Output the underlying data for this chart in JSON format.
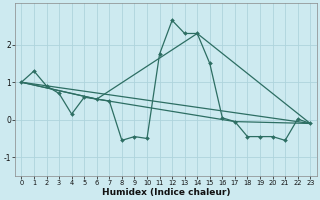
{
  "xlabel": "Humidex (Indice chaleur)",
  "bg_color": "#cdeaf0",
  "grid_color": "#b0d8e0",
  "line_color": "#2d6e63",
  "marker": "D",
  "markersize": 2.0,
  "linewidth": 0.9,
  "xlim": [
    -0.5,
    23.5
  ],
  "ylim": [
    -1.5,
    3.1
  ],
  "yticks": [
    -1,
    0,
    1,
    2
  ],
  "xticks": [
    0,
    1,
    2,
    3,
    4,
    5,
    6,
    7,
    8,
    9,
    10,
    11,
    12,
    13,
    14,
    15,
    16,
    17,
    18,
    19,
    20,
    21,
    22,
    23
  ],
  "lines": [
    {
      "x": [
        0,
        1,
        2,
        3,
        4,
        5,
        6,
        7,
        8,
        9,
        10,
        11,
        12,
        13,
        14,
        15,
        16,
        17,
        18,
        19,
        20,
        21,
        22,
        23
      ],
      "y": [
        1.0,
        1.3,
        0.9,
        0.7,
        0.15,
        0.6,
        0.55,
        0.5,
        -0.55,
        -0.45,
        -0.5,
        1.75,
        2.65,
        2.3,
        2.3,
        1.5,
        0.05,
        -0.05,
        -0.45,
        -0.45,
        -0.45,
        -0.55,
        0.02,
        -0.1
      ]
    },
    {
      "x": [
        0,
        6,
        14,
        23
      ],
      "y": [
        1.0,
        0.55,
        2.3,
        -0.1
      ]
    },
    {
      "x": [
        0,
        6,
        17,
        23
      ],
      "y": [
        1.0,
        0.55,
        -0.05,
        -0.1
      ]
    },
    {
      "x": [
        0,
        23
      ],
      "y": [
        1.0,
        -0.1
      ]
    }
  ]
}
